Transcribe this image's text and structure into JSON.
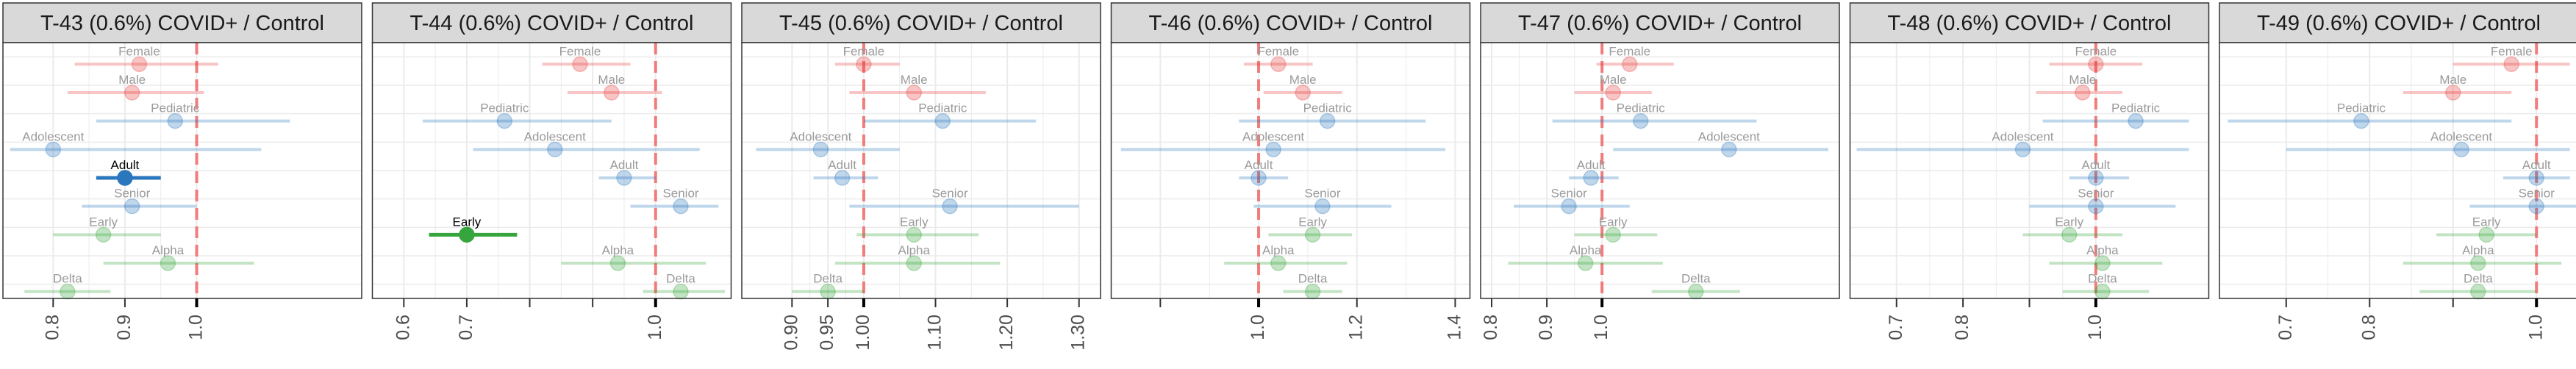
{
  "chart_data": [
    {
      "type": "scatter",
      "title": "T-43 (0.6%) COVID+ / Control",
      "xlim": [
        0.73,
        1.23
      ],
      "ticks": [
        0.8,
        0.9,
        1.0
      ],
      "tick_labels": [
        "0.8",
        "0.9",
        "1.0"
      ],
      "extra_ticks": [],
      "highlight": "Adult",
      "points": [
        {
          "label": "Female",
          "group": "Sex",
          "est": 0.92,
          "lo": 0.83,
          "hi": 1.03
        },
        {
          "label": "Male",
          "group": "Sex",
          "est": 0.91,
          "lo": 0.82,
          "hi": 1.01
        },
        {
          "label": "Pediatric",
          "group": "Age",
          "est": 0.97,
          "lo": 0.86,
          "hi": 1.13
        },
        {
          "label": "Adolescent",
          "group": "Age",
          "est": 0.8,
          "lo": 0.74,
          "hi": 1.09
        },
        {
          "label": "Adult",
          "group": "Age",
          "est": 0.9,
          "lo": 0.86,
          "hi": 0.95
        },
        {
          "label": "Senior",
          "group": "Age",
          "est": 0.91,
          "lo": 0.84,
          "hi": 1.0
        },
        {
          "label": "Early",
          "group": "Variant",
          "est": 0.87,
          "lo": 0.8,
          "hi": 0.95
        },
        {
          "label": "Alpha",
          "group": "Variant",
          "est": 0.96,
          "lo": 0.87,
          "hi": 1.08
        },
        {
          "label": "Delta",
          "group": "Variant",
          "est": 0.82,
          "lo": 0.76,
          "hi": 0.88
        }
      ]
    },
    {
      "type": "scatter",
      "title": "T-44 (0.6%) COVID+ / Control",
      "xlim": [
        0.55,
        1.12
      ],
      "ticks": [
        0.6,
        0.7,
        1.0
      ],
      "tick_labels": [
        "0.6",
        "0.7",
        "1.0"
      ],
      "extra_ticks": [
        0.8,
        0.9
      ],
      "highlight": "Early",
      "points": [
        {
          "label": "Female",
          "group": "Sex",
          "est": 0.88,
          "lo": 0.82,
          "hi": 0.96
        },
        {
          "label": "Male",
          "group": "Sex",
          "est": 0.93,
          "lo": 0.86,
          "hi": 1.01
        },
        {
          "label": "Pediatric",
          "group": "Age",
          "est": 0.76,
          "lo": 0.63,
          "hi": 0.93
        },
        {
          "label": "Adolescent",
          "group": "Age",
          "est": 0.84,
          "lo": 0.71,
          "hi": 1.07
        },
        {
          "label": "Adult",
          "group": "Age",
          "est": 0.95,
          "lo": 0.91,
          "hi": 1.0
        },
        {
          "label": "Senior",
          "group": "Age",
          "est": 1.04,
          "lo": 0.96,
          "hi": 1.1
        },
        {
          "label": "Early",
          "group": "Variant",
          "est": 0.7,
          "lo": 0.64,
          "hi": 0.78
        },
        {
          "label": "Alpha",
          "group": "Variant",
          "est": 0.94,
          "lo": 0.85,
          "hi": 1.08
        },
        {
          "label": "Delta",
          "group": "Variant",
          "est": 1.04,
          "lo": 0.98,
          "hi": 1.11
        }
      ]
    },
    {
      "type": "scatter",
      "title": "T-45 (0.6%) COVID+ / Control",
      "xlim": [
        0.83,
        1.33
      ],
      "ticks": [
        0.9,
        0.95,
        1.0,
        1.1,
        1.2,
        1.3
      ],
      "tick_labels": [
        "0.90",
        "0.95",
        "1.00",
        "1.10",
        "1.20",
        "1.30"
      ],
      "extra_ticks": [],
      "highlight": "",
      "points": [
        {
          "label": "Female",
          "group": "Sex",
          "est": 1.0,
          "lo": 0.96,
          "hi": 1.05
        },
        {
          "label": "Male",
          "group": "Sex",
          "est": 1.07,
          "lo": 0.98,
          "hi": 1.17
        },
        {
          "label": "Pediatric",
          "group": "Age",
          "est": 1.11,
          "lo": 1.0,
          "hi": 1.24
        },
        {
          "label": "Adolescent",
          "group": "Age",
          "est": 0.94,
          "lo": 0.85,
          "hi": 1.05
        },
        {
          "label": "Adult",
          "group": "Age",
          "est": 0.97,
          "lo": 0.93,
          "hi": 1.02
        },
        {
          "label": "Senior",
          "group": "Age",
          "est": 1.12,
          "lo": 0.98,
          "hi": 1.3
        },
        {
          "label": "Early",
          "group": "Variant",
          "est": 1.07,
          "lo": 0.99,
          "hi": 1.16
        },
        {
          "label": "Alpha",
          "group": "Variant",
          "est": 1.07,
          "lo": 0.96,
          "hi": 1.19
        },
        {
          "label": "Delta",
          "group": "Variant",
          "est": 0.95,
          "lo": 0.9,
          "hi": 1.0
        }
      ]
    },
    {
      "type": "scatter",
      "title": "T-46 (0.6%) COVID+ / Control",
      "xlim": [
        0.7,
        1.43
      ],
      "ticks": [
        1.0,
        1.2,
        1.4
      ],
      "tick_labels": [
        "1.0",
        "1.2",
        "1.4"
      ],
      "extra_ticks": [
        0.8
      ],
      "highlight": "",
      "points": [
        {
          "label": "Female",
          "group": "Sex",
          "est": 1.04,
          "lo": 0.97,
          "hi": 1.11
        },
        {
          "label": "Male",
          "group": "Sex",
          "est": 1.09,
          "lo": 1.01,
          "hi": 1.17
        },
        {
          "label": "Pediatric",
          "group": "Age",
          "est": 1.14,
          "lo": 0.96,
          "hi": 1.34
        },
        {
          "label": "Adolescent",
          "group": "Age",
          "est": 1.03,
          "lo": 0.72,
          "hi": 1.38
        },
        {
          "label": "Adult",
          "group": "Age",
          "est": 1.0,
          "lo": 0.96,
          "hi": 1.06
        },
        {
          "label": "Senior",
          "group": "Age",
          "est": 1.13,
          "lo": 0.99,
          "hi": 1.27
        },
        {
          "label": "Early",
          "group": "Variant",
          "est": 1.11,
          "lo": 1.02,
          "hi": 1.19
        },
        {
          "label": "Alpha",
          "group": "Variant",
          "est": 1.04,
          "lo": 0.93,
          "hi": 1.18
        },
        {
          "label": "Delta",
          "group": "Variant",
          "est": 1.11,
          "lo": 1.05,
          "hi": 1.17
        }
      ]
    },
    {
      "type": "scatter",
      "title": "T-47 (0.6%) COVID+ / Control",
      "xlim": [
        0.78,
        1.43
      ],
      "ticks": [
        0.8,
        0.9,
        1.0
      ],
      "tick_labels": [
        "0.8",
        "0.9",
        "1.0"
      ],
      "extra_ticks": [],
      "highlight": "",
      "points": [
        {
          "label": "Female",
          "group": "Sex",
          "est": 1.05,
          "lo": 0.99,
          "hi": 1.13
        },
        {
          "label": "Male",
          "group": "Sex",
          "est": 1.02,
          "lo": 0.95,
          "hi": 1.09
        },
        {
          "label": "Pediatric",
          "group": "Age",
          "est": 1.07,
          "lo": 0.91,
          "hi": 1.28
        },
        {
          "label": "Adolescent",
          "group": "Age",
          "est": 1.23,
          "lo": 1.02,
          "hi": 1.41
        },
        {
          "label": "Adult",
          "group": "Age",
          "est": 0.98,
          "lo": 0.94,
          "hi": 1.03
        },
        {
          "label": "Senior",
          "group": "Age",
          "est": 0.94,
          "lo": 0.84,
          "hi": 1.05
        },
        {
          "label": "Early",
          "group": "Variant",
          "est": 1.02,
          "lo": 0.95,
          "hi": 1.1
        },
        {
          "label": "Alpha",
          "group": "Variant",
          "est": 0.97,
          "lo": 0.83,
          "hi": 1.11
        },
        {
          "label": "Delta",
          "group": "Variant",
          "est": 1.17,
          "lo": 1.09,
          "hi": 1.25
        }
      ]
    },
    {
      "type": "scatter",
      "title": "T-48 (0.6%) COVID+ / Control",
      "xlim": [
        0.63,
        1.17
      ],
      "ticks": [
        0.7,
        0.8,
        1.0
      ],
      "tick_labels": [
        "0.7",
        "0.8",
        "1.0"
      ],
      "extra_ticks": [
        0.9
      ],
      "highlight": "",
      "points": [
        {
          "label": "Female",
          "group": "Sex",
          "est": 1.0,
          "lo": 0.93,
          "hi": 1.07
        },
        {
          "label": "Male",
          "group": "Sex",
          "est": 0.98,
          "lo": 0.91,
          "hi": 1.04
        },
        {
          "label": "Pediatric",
          "group": "Age",
          "est": 1.06,
          "lo": 0.92,
          "hi": 1.14
        },
        {
          "label": "Adolescent",
          "group": "Age",
          "est": 0.89,
          "lo": 0.64,
          "hi": 1.14
        },
        {
          "label": "Adult",
          "group": "Age",
          "est": 1.0,
          "lo": 0.96,
          "hi": 1.05
        },
        {
          "label": "Senior",
          "group": "Age",
          "est": 1.0,
          "lo": 0.9,
          "hi": 1.12
        },
        {
          "label": "Early",
          "group": "Variant",
          "est": 0.96,
          "lo": 0.89,
          "hi": 1.04
        },
        {
          "label": "Alpha",
          "group": "Variant",
          "est": 1.01,
          "lo": 0.93,
          "hi": 1.1
        },
        {
          "label": "Delta",
          "group": "Variant",
          "est": 1.01,
          "lo": 0.95,
          "hi": 1.08
        }
      ]
    },
    {
      "type": "scatter",
      "title": "T-49 (0.6%) COVID+ / Control",
      "xlim": [
        0.62,
        1.05
      ],
      "ticks": [
        0.7,
        0.8,
        1.0
      ],
      "tick_labels": [
        "0.7",
        "0.8",
        "1.0"
      ],
      "extra_ticks": [
        0.9
      ],
      "highlight": "",
      "points": [
        {
          "label": "Female",
          "group": "Sex",
          "est": 0.97,
          "lo": 0.9,
          "hi": 1.04
        },
        {
          "label": "Male",
          "group": "Sex",
          "est": 0.9,
          "lo": 0.84,
          "hi": 0.97
        },
        {
          "label": "Pediatric",
          "group": "Age",
          "est": 0.79,
          "lo": 0.63,
          "hi": 0.97
        },
        {
          "label": "Adolescent",
          "group": "Age",
          "est": 0.91,
          "lo": 0.7,
          "hi": 1.04
        },
        {
          "label": "Adult",
          "group": "Age",
          "est": 1.0,
          "lo": 0.96,
          "hi": 1.04
        },
        {
          "label": "Senior",
          "group": "Age",
          "est": 1.0,
          "lo": 0.92,
          "hi": 1.05
        },
        {
          "label": "Early",
          "group": "Variant",
          "est": 0.94,
          "lo": 0.88,
          "hi": 1.0
        },
        {
          "label": "Alpha",
          "group": "Variant",
          "est": 0.93,
          "lo": 0.84,
          "hi": 1.03
        },
        {
          "label": "Delta",
          "group": "Variant",
          "est": 0.93,
          "lo": 0.86,
          "hi": 1.0
        }
      ]
    }
  ],
  "colors": {
    "Sex": "#e8403f",
    "Age": "#2b77bd",
    "Variant": "#37a53d",
    "reference_line": "#f07c7c",
    "strip_bg": "#d9d9d9",
    "grid": "#ebebeb"
  }
}
